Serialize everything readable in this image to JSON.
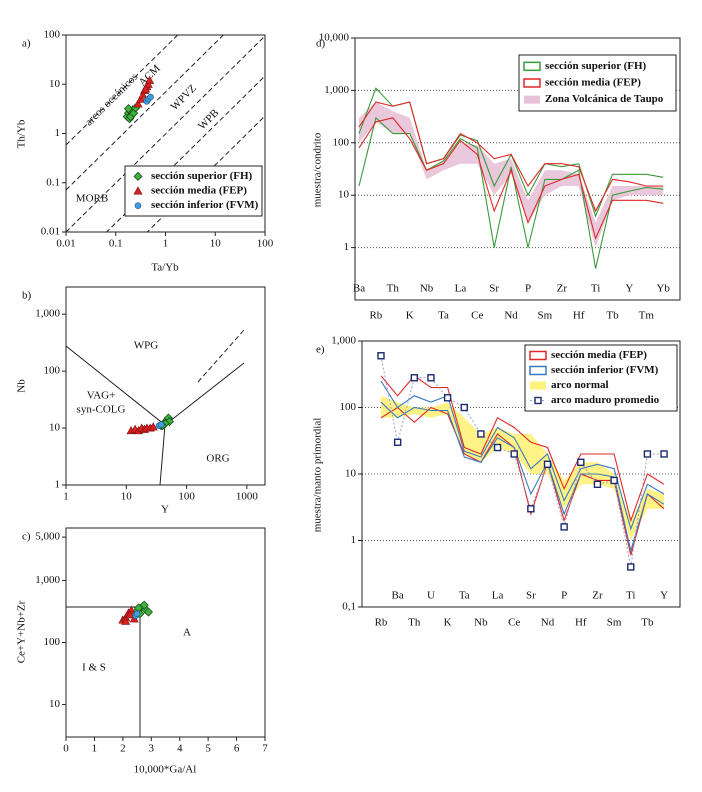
{
  "chart_data": [
    {
      "type": "scatter",
      "panel_label": "a)",
      "xlabel": "Ta/Yb",
      "ylabel": "Th/Yb",
      "log_x": true,
      "log_y": true,
      "xlim": [
        0.01,
        100
      ],
      "ylim": [
        0.01,
        100
      ],
      "xticks": [
        0.01,
        0.1,
        1,
        10,
        100
      ],
      "yticks": [
        0.01,
        0.1,
        1,
        10,
        100
      ],
      "annotations": [
        "arcos oceánicos",
        "ACM",
        "WPVZ",
        "WPB",
        "MORB"
      ],
      "legend": "lower right",
      "series": [
        {
          "name": "sección superior (FH)",
          "color": "#3cb33c",
          "marker": "diamond",
          "x": [
            0.17,
            0.18,
            0.19,
            0.2,
            0.21,
            0.22,
            0.18,
            0.2,
            0.23,
            0.25
          ],
          "values": [
            2.2,
            2.6,
            2.0,
            2.8,
            2.4,
            3.0,
            3.2,
            2.2,
            2.6,
            3.3
          ]
        },
        {
          "name": "sección media (FEP)",
          "color": "#d92020",
          "marker": "triangle",
          "x": [
            0.28,
            0.32,
            0.35,
            0.38,
            0.42,
            0.45,
            0.48,
            0.4
          ],
          "values": [
            4,
            5,
            6,
            7.5,
            9,
            10,
            12,
            8
          ]
        },
        {
          "name": "sección inferior (FVM)",
          "color": "#3fa0e0",
          "marker": "circle",
          "x": [
            0.42,
            0.45,
            0.5
          ],
          "values": [
            4.5,
            5,
            5.5
          ]
        }
      ]
    },
    {
      "type": "scatter",
      "panel_label": "b)",
      "xlabel": "Y",
      "ylabel": "Nb",
      "log_x": true,
      "log_y": true,
      "xlim": [
        1,
        2000
      ],
      "ylim": [
        1,
        3000
      ],
      "xticks": [
        1,
        10,
        100,
        1000
      ],
      "yticks": [
        1,
        10,
        100,
        {
          "value": 1000,
          "label": "1,000"
        }
      ],
      "annotations": [
        "WPG",
        "VAG+",
        "syn-COLG",
        "ORG"
      ],
      "series": [
        {
          "name": "sección superior (FH)",
          "color": "#3cb33c",
          "marker": "diamond",
          "x": [
            38,
            42,
            45,
            48,
            50,
            52,
            44,
            40
          ],
          "values": [
            11,
            12,
            13,
            14,
            15,
            13,
            12,
            11
          ]
        },
        {
          "name": "sección media (FEP)",
          "color": "#d92020",
          "marker": "triangle",
          "x": [
            12,
            14,
            16,
            18,
            20,
            22,
            25,
            28
          ],
          "values": [
            9,
            9.5,
            9,
            10,
            9.5,
            10,
            10,
            10.5
          ]
        },
        {
          "name": "sección inferior (FVM)",
          "color": "#3fa0e0",
          "marker": "circle",
          "x": [
            35,
            38
          ],
          "values": [
            11,
            11.5
          ]
        }
      ]
    },
    {
      "type": "scatter",
      "panel_label": "c)",
      "xlabel": "10,000*Ga/Al",
      "ylabel": "Ce+Y+Nb+Zr",
      "log_x": false,
      "log_y": true,
      "xlim": [
        0,
        7
      ],
      "ylim": [
        3,
        7000
      ],
      "xticks": [
        0,
        1,
        2,
        3,
        4,
        5,
        6,
        7
      ],
      "yticks": [
        10,
        100,
        {
          "value": 1000,
          "label": "1,000"
        },
        {
          "value": 5000,
          "label": "5,000"
        }
      ],
      "annotations": [
        "A",
        "I & S"
      ],
      "series": [
        {
          "name": "sección superior (FH)",
          "color": "#3cb33c",
          "marker": "diamond",
          "x": [
            2.5,
            2.6,
            2.7,
            2.8,
            2.9,
            2.6,
            2.75,
            2.55
          ],
          "values": [
            320,
            350,
            380,
            340,
            310,
            290,
            400,
            360
          ]
        },
        {
          "name": "sección media (FEP)",
          "color": "#d92020",
          "marker": "triangle",
          "x": [
            2.0,
            2.1,
            2.2,
            2.3,
            2.4,
            2.1,
            2.25
          ],
          "values": [
            230,
            250,
            300,
            330,
            240,
            220,
            280
          ]
        },
        {
          "name": "sección inferior (FVM)",
          "color": "#3fa0e0",
          "marker": "circle",
          "x": [
            2.45,
            2.5
          ],
          "values": [
            270,
            290
          ]
        }
      ]
    },
    {
      "type": "line",
      "panel_label": "d)",
      "ylabel": "muestra/condrito",
      "log_y": true,
      "grid": true,
      "legend": "upper right",
      "categories": [
        "Ba",
        "Rb",
        "Th",
        "K",
        "Nb",
        "Ta",
        "La",
        "Ce",
        "Sr",
        "Nd",
        "P",
        "Sm",
        "Zr",
        "Hf",
        "Ti",
        "Tb",
        "Y",
        "Tm",
        "Yb"
      ],
      "ylim": [
        0.1,
        10000
      ],
      "yticks": [
        1,
        10,
        100,
        {
          "value": 1000,
          "label": "1,000"
        },
        {
          "value": 10000,
          "label": "10,000"
        }
      ],
      "series": [
        {
          "name": "sección superior (FH)",
          "color": "#3a9a3a",
          "style": "range",
          "upper": [
            150,
            1100,
            500,
            600,
            40,
            50,
            140,
            110,
            15,
            60,
            10,
            40,
            35,
            40,
            4,
            25,
            25,
            25,
            22
          ],
          "lower": [
            15,
            300,
            150,
            150,
            30,
            45,
            120,
            80,
            1,
            35,
            1,
            20,
            20,
            30,
            0.4,
            10,
            12,
            14,
            13
          ]
        },
        {
          "name": "sección media (FEP)",
          "color": "#e02828",
          "style": "range",
          "upper": [
            200,
            600,
            500,
            600,
            40,
            50,
            150,
            100,
            50,
            60,
            15,
            40,
            40,
            35,
            5,
            20,
            18,
            15,
            15
          ],
          "lower": [
            80,
            250,
            300,
            120,
            30,
            40,
            110,
            60,
            5,
            30,
            3,
            15,
            20,
            25,
            1.5,
            8,
            8,
            8,
            7
          ]
        },
        {
          "name": "Zona Volcánica de Taupo",
          "color": "#e8c2d8",
          "style": "band",
          "upper": [
            300,
            600,
            400,
            300,
            30,
            45,
            100,
            90,
            40,
            50,
            8,
            30,
            30,
            25,
            3,
            15,
            15,
            15,
            15
          ],
          "lower": [
            100,
            250,
            150,
            150,
            20,
            30,
            40,
            40,
            10,
            25,
            3,
            10,
            15,
            15,
            1,
            8,
            10,
            10,
            10
          ]
        }
      ]
    },
    {
      "type": "line",
      "panel_label": "e)",
      "ylabel": "muestra/manto primordial",
      "log_y": true,
      "grid": true,
      "legend": "upper right",
      "categories": [
        "Rb",
        "Ba",
        "Th",
        "U",
        "K",
        "Ta",
        "Nb",
        "La",
        "Ce",
        "Sr",
        "Nd",
        "P",
        "Hf",
        "Zr",
        "Sm",
        "Ti",
        "Tb",
        "Y"
      ],
      "ylim": [
        0.1,
        1000
      ],
      "yticks": [
        {
          "value": 0.1,
          "label": "0,1"
        },
        1,
        10,
        100,
        {
          "value": 1000,
          "label": "1,000"
        }
      ],
      "series": [
        {
          "name": "sección media (FEP)",
          "color": "#e02828",
          "style": "range",
          "upper": [
            300,
            150,
            300,
            200,
            200,
            25,
            20,
            70,
            50,
            30,
            25,
            6,
            20,
            20,
            20,
            2,
            10,
            7
          ],
          "lower": [
            70,
            100,
            60,
            100,
            80,
            20,
            15,
            40,
            25,
            2.5,
            15,
            2,
            10,
            8,
            8,
            0.6,
            5,
            3
          ]
        },
        {
          "name": "sección inferior (FVM)",
          "color": "#3b78c2",
          "style": "range",
          "upper": [
            250,
            100,
            150,
            120,
            150,
            22,
            18,
            50,
            35,
            12,
            20,
            4,
            12,
            14,
            12,
            1.5,
            7,
            5
          ],
          "lower": [
            120,
            70,
            100,
            90,
            90,
            18,
            15,
            35,
            25,
            5,
            15,
            2.5,
            10,
            10,
            9,
            0.7,
            5,
            3.5
          ]
        },
        {
          "name": "arco normal",
          "color": "#fff27a",
          "style": "band",
          "upper": [
            150,
            120,
            100,
            100,
            120,
            70,
            40,
            50,
            40,
            40,
            20,
            8,
            15,
            15,
            10,
            2,
            6,
            5
          ],
          "lower": [
            70,
            70,
            80,
            70,
            80,
            20,
            15,
            25,
            20,
            10,
            10,
            3,
            7,
            7,
            6,
            1,
            3,
            3
          ]
        },
        {
          "name": "arco maduro promedio",
          "color": "#1c2a6e",
          "style": "markers-line",
          "values": [
            600,
            30,
            280,
            280,
            140,
            100,
            40,
            25,
            20,
            3,
            14,
            1.6,
            15,
            7,
            8,
            0.4,
            20,
            20
          ]
        }
      ]
    }
  ]
}
